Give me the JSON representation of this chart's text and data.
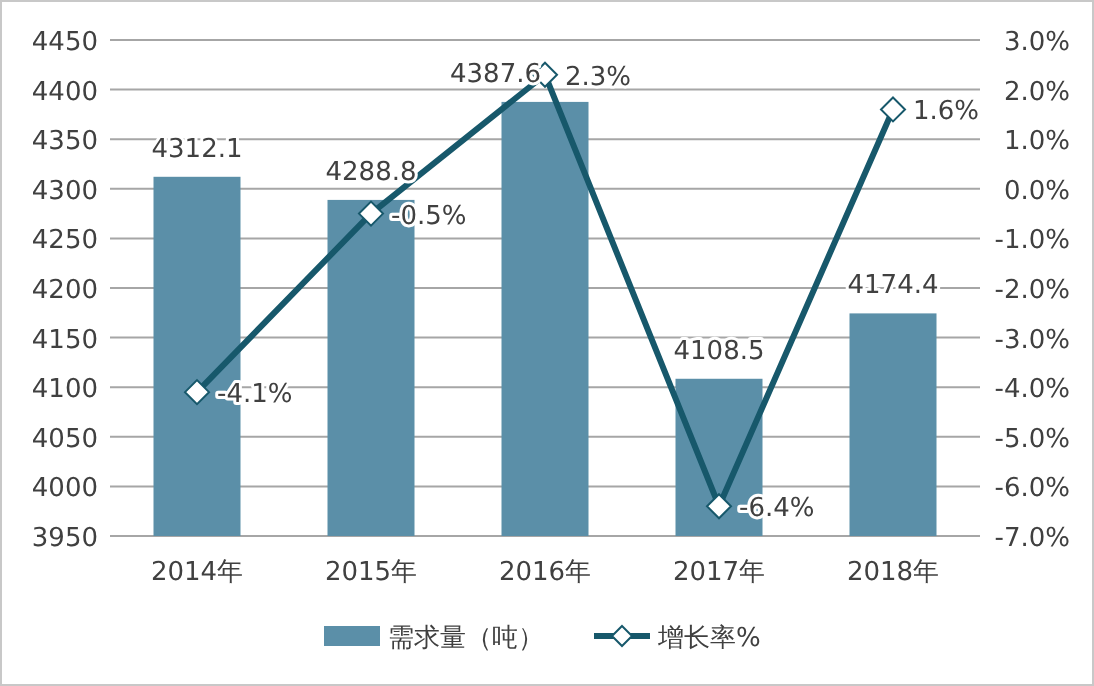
{
  "chart_data": {
    "type": "bar",
    "categories": [
      "2014年",
      "2015年",
      "2016年",
      "2017年",
      "2018年"
    ],
    "series": [
      {
        "name": "需求量（吨）",
        "color": "#5b8fa8",
        "values": [
          4312.1,
          4288.8,
          4387.6,
          4108.5,
          4174.4
        ],
        "value_labels": [
          "4312.1",
          "4288.8",
          "4387.6",
          "4108.5",
          "4174.4"
        ]
      },
      {
        "name": "增长率%",
        "type": "line",
        "axis": "y2",
        "color": "#17586b",
        "marker": "diamond",
        "values": [
          -4.1,
          -0.5,
          2.3,
          -6.4,
          1.6
        ],
        "value_labels": [
          "-4.1%",
          "-0.5%",
          "2.3%",
          "-6.4%",
          "1.6%"
        ]
      }
    ],
    "ylim": [
      3950,
      4450
    ],
    "yticks": [
      3950,
      4000,
      4050,
      4100,
      4150,
      4200,
      4250,
      4300,
      4350,
      4400,
      4450
    ],
    "y2lim": [
      -7,
      3
    ],
    "y2ticks": [
      {
        "value": -7,
        "label": "-7.0%"
      },
      {
        "value": -6,
        "label": "-6.0%"
      },
      {
        "value": -5,
        "label": "-5.0%"
      },
      {
        "value": -4,
        "label": "-4.0%"
      },
      {
        "value": -3,
        "label": "-3.0%"
      },
      {
        "value": -2,
        "label": "-2.0%"
      },
      {
        "value": -1,
        "label": "-1.0%"
      },
      {
        "value": 0,
        "label": "0.0%"
      },
      {
        "value": 1,
        "label": "1.0%"
      },
      {
        "value": 2,
        "label": "2.0%"
      },
      {
        "value": 3,
        "label": "3.0%"
      }
    ],
    "grid": "y",
    "legend": "bottom"
  }
}
